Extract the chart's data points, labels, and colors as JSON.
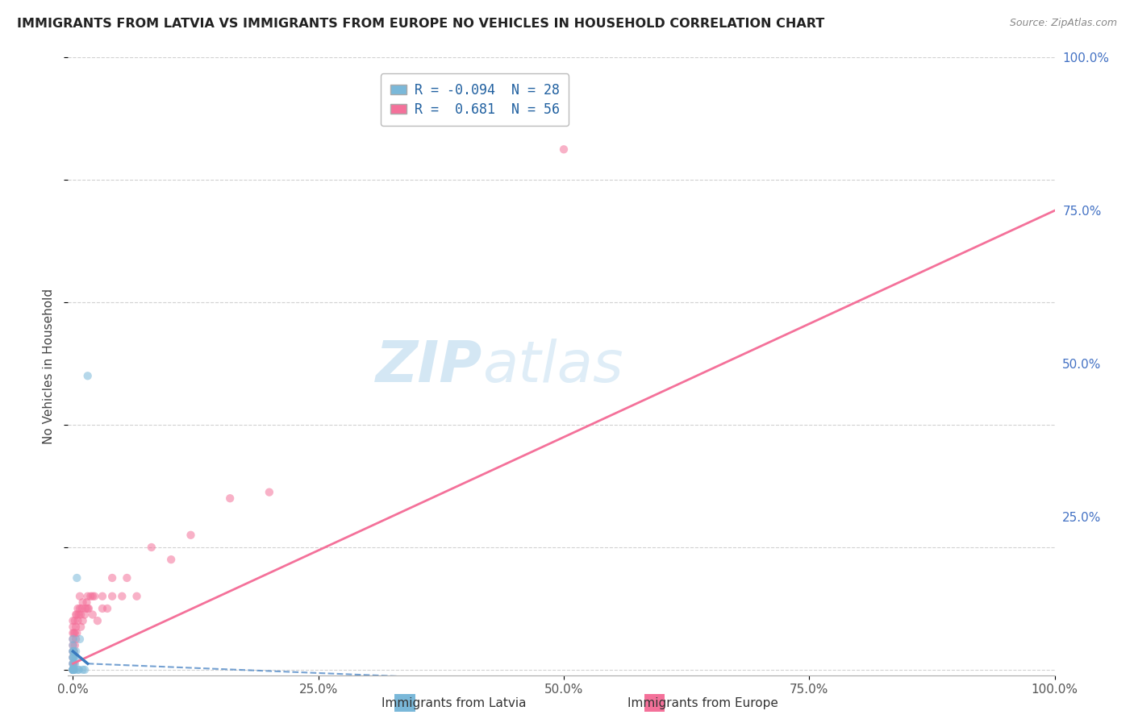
{
  "title": "IMMIGRANTS FROM LATVIA VS IMMIGRANTS FROM EUROPE NO VEHICLES IN HOUSEHOLD CORRELATION CHART",
  "source": "Source: ZipAtlas.com",
  "ylabel": "No Vehicles in Household",
  "background_color": "#ffffff",
  "grid_color": "#cccccc",
  "watermark_text": "ZIPatlas",
  "watermark_color": "#cce4f5",
  "latvia_color": "#7ab8d9",
  "europe_color": "#f4719a",
  "latvia_line_color": "#3a7abf",
  "europe_line_color": "#f4719a",
  "latvia_x": [
    0.0,
    0.0,
    0.0,
    0.0,
    0.0,
    0.0,
    0.0,
    0.0,
    0.0,
    0.0,
    0.0,
    0.0,
    0.0,
    0.0,
    0.001,
    0.001,
    0.001,
    0.002,
    0.002,
    0.003,
    0.003,
    0.004,
    0.005,
    0.006,
    0.007,
    0.01,
    0.012,
    0.015
  ],
  "latvia_y": [
    0.0,
    0.0,
    0.0,
    0.0,
    0.0,
    0.0,
    0.01,
    0.01,
    0.02,
    0.02,
    0.03,
    0.03,
    0.04,
    0.05,
    0.0,
    0.02,
    0.03,
    0.0,
    0.01,
    0.02,
    0.03,
    0.15,
    0.0,
    0.0,
    0.05,
    0.0,
    0.0,
    0.48
  ],
  "europe_x": [
    0.0,
    0.0,
    0.0,
    0.0,
    0.0,
    0.0,
    0.0,
    0.0,
    0.0,
    0.0,
    0.001,
    0.001,
    0.001,
    0.002,
    0.002,
    0.002,
    0.003,
    0.003,
    0.003,
    0.004,
    0.004,
    0.005,
    0.005,
    0.006,
    0.007,
    0.007,
    0.008,
    0.008,
    0.009,
    0.01,
    0.01,
    0.012,
    0.013,
    0.014,
    0.015,
    0.015,
    0.016,
    0.018,
    0.02,
    0.02,
    0.022,
    0.025,
    0.03,
    0.03,
    0.035,
    0.04,
    0.04,
    0.05,
    0.055,
    0.065,
    0.08,
    0.1,
    0.12,
    0.16,
    0.2,
    0.5
  ],
  "europe_y": [
    0.0,
    0.0,
    0.01,
    0.02,
    0.03,
    0.04,
    0.05,
    0.06,
    0.07,
    0.08,
    0.01,
    0.03,
    0.06,
    0.04,
    0.06,
    0.08,
    0.05,
    0.07,
    0.09,
    0.06,
    0.09,
    0.08,
    0.1,
    0.09,
    0.1,
    0.12,
    0.07,
    0.09,
    0.1,
    0.08,
    0.11,
    0.09,
    0.1,
    0.11,
    0.1,
    0.12,
    0.1,
    0.12,
    0.09,
    0.12,
    0.12,
    0.08,
    0.1,
    0.12,
    0.1,
    0.12,
    0.15,
    0.12,
    0.15,
    0.12,
    0.2,
    0.18,
    0.22,
    0.28,
    0.29,
    0.85
  ],
  "xlim": [
    -0.005,
    1.0
  ],
  "ylim": [
    -0.01,
    1.0
  ],
  "xticks": [
    0.0,
    0.25,
    0.5,
    0.75,
    1.0
  ],
  "xticklabels": [
    "0.0%",
    "25.0%",
    "50.0%",
    "75.0%",
    "100.0%"
  ],
  "yticks": [
    0.0,
    0.25,
    0.5,
    0.75,
    1.0
  ],
  "yticklabels_right": [
    "",
    "25.0%",
    "50.0%",
    "75.0%",
    "100.0%"
  ],
  "legend_latvia_label": "R = -0.094  N = 28",
  "legend_europe_label": "R =  0.681  N = 56",
  "bottom_label_latvia": "Immigrants from Latvia",
  "bottom_label_europe": "Immigrants from Europe",
  "marker_size": 55,
  "marker_alpha": 0.55,
  "marker_linewidth": 0.5
}
